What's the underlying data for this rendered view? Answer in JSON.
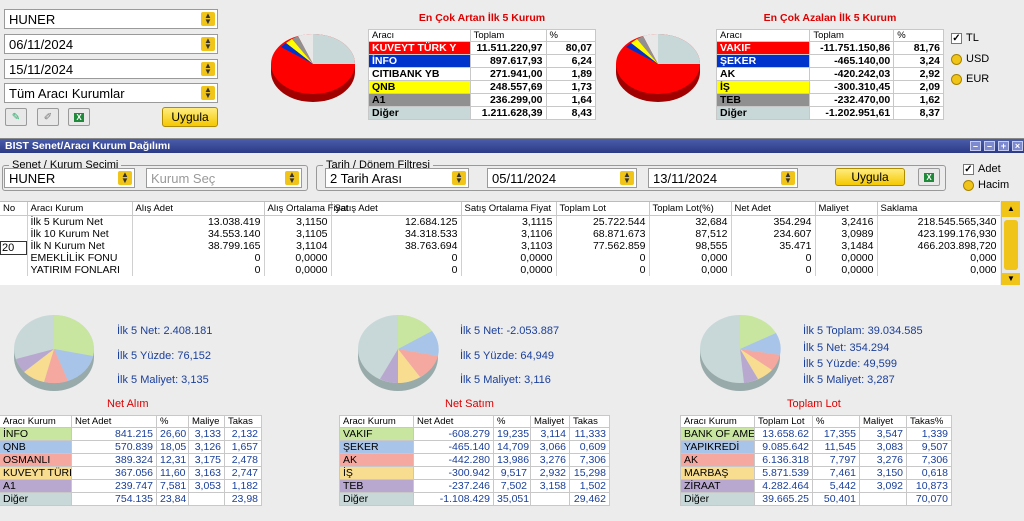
{
  "filters": {
    "kurum": "HUNER",
    "start_date": "06/11/2024",
    "end_date": "15/11/2024",
    "araci": "Tüm Aracı Kurumlar",
    "apply": "Uygula"
  },
  "top_artan": {
    "title": "En Çok Artan İlk 5 Kurum",
    "headers": [
      "Aracı",
      "Toplam",
      "%"
    ],
    "rows": [
      {
        "name": "KUVEYT TÜRK Y",
        "total": "11.511.220,97",
        "pct": "80,07",
        "bg": "#ff0000",
        "fg": "#ffffff"
      },
      {
        "name": "İNFO",
        "total": "897.617,93",
        "pct": "6,24",
        "bg": "#0033cc",
        "fg": "#ffffff"
      },
      {
        "name": "CITIBANK YB",
        "total": "271.941,00",
        "pct": "1,89",
        "bg": "#ffffff",
        "fg": "#000000"
      },
      {
        "name": "QNB",
        "total": "248.557,69",
        "pct": "1,73",
        "bg": "#ffff00",
        "fg": "#000000"
      },
      {
        "name": "A1",
        "total": "236.299,00",
        "pct": "1,64",
        "bg": "#909090",
        "fg": "#000000"
      },
      {
        "name": "Diğer",
        "total": "1.211.628,39",
        "pct": "8,43",
        "bg": "#c8d8d8",
        "fg": "#000000"
      }
    ]
  },
  "top_azalan": {
    "title": "En Çok Azalan İlk 5 Kurum",
    "headers": [
      "Aracı",
      "Toplam",
      "%"
    ],
    "rows": [
      {
        "name": "VAKIF",
        "total": "-11.751.150,86",
        "pct": "81,76",
        "bg": "#ff0000",
        "fg": "#ffffff"
      },
      {
        "name": "ŞEKER",
        "total": "-465.140,00",
        "pct": "3,24",
        "bg": "#0033cc",
        "fg": "#ffffff"
      },
      {
        "name": "AK",
        "total": "-420.242,03",
        "pct": "2,92",
        "bg": "#ffffff",
        "fg": "#000000"
      },
      {
        "name": "İŞ",
        "total": "-300.310,45",
        "pct": "2,09",
        "bg": "#ffff00",
        "fg": "#000000"
      },
      {
        "name": "TEB",
        "total": "-232.470,00",
        "pct": "1,62",
        "bg": "#909090",
        "fg": "#000000"
      },
      {
        "name": "Diğer",
        "total": "-1.202.951,61",
        "pct": "8,37",
        "bg": "#c8d8d8",
        "fg": "#000000"
      }
    ]
  },
  "currency": {
    "tl": "TL",
    "usd": "USD",
    "eur": "EUR"
  },
  "window": {
    "title": "BIST Senet/Aracı Kurum Dağılımı",
    "legend1": "Senet / Kurum Seçimi",
    "senet": "HUNER",
    "kurum_placeholder": "Kurum Seç",
    "legend2": "Tarih / Dönem Filtresi",
    "period": "2 Tarih Arası",
    "date1": "05/11/2024",
    "date2": "13/11/2024",
    "apply": "Uygula",
    "adet": "Adet",
    "hacim": "Hacim"
  },
  "main_table": {
    "headers": [
      "No",
      "Aracı Kurum",
      "Alış Adet",
      "Alış Ortalama Fiyat",
      "Satış Adet",
      "Satış Ortalama Fiyat",
      "Toplam Lot",
      "Toplam Lot(%)",
      "Net Adet",
      "Maliyet",
      "Saklama"
    ],
    "no_value": "20",
    "rows": [
      [
        "",
        "İlk 5 Kurum Net",
        "13.038.419",
        "3,1150",
        "12.684.125",
        "3,1115",
        "25.722.544",
        "32,684",
        "354.294",
        "3,2416",
        "218.545.565,340"
      ],
      [
        "",
        "İlk 10 Kurum Net",
        "34.553.140",
        "3,1105",
        "34.318.533",
        "3,1106",
        "68.871.673",
        "87,512",
        "234.607",
        "3,0989",
        "423.199.176,930"
      ],
      [
        "",
        "İlk N Kurum Net",
        "38.799.165",
        "3,1104",
        "38.763.694",
        "3,1103",
        "77.562.859",
        "98,555",
        "35.471",
        "3,1484",
        "466.203.898,720"
      ],
      [
        "",
        "EMEKLİLİK FONU",
        "0",
        "0,0000",
        "0",
        "0,0000",
        "0",
        "0,000",
        "0",
        "0,0000",
        "0,000"
      ],
      [
        "",
        "YATIRIM FONLARI",
        "0",
        "0,0000",
        "0",
        "0,0000",
        "0",
        "0,000",
        "0",
        "0,0000",
        "0,000"
      ]
    ]
  },
  "net_alim": {
    "title": "Net Alım",
    "summary": [
      "İlk 5 Net: 2.408.181",
      "İlk 5 Yüzde: 76,152",
      "İlk 5 Maliyet: 3,135"
    ],
    "headers": [
      "Aracı Kurum",
      "Net Adet",
      "%",
      "Maliye",
      "Takas"
    ],
    "rows": [
      {
        "c": [
          "İNFO",
          "841.215",
          "26,60",
          "3,133",
          "2,132"
        ],
        "bg": "#c8e6a0"
      },
      {
        "c": [
          "QNB",
          "570.839",
          "18,05",
          "3,126",
          "1,657"
        ],
        "bg": "#a8c4e8"
      },
      {
        "c": [
          "OSMANLI",
          "389.324",
          "12,31",
          "3,175",
          "2,478"
        ],
        "bg": "#f4a8a0"
      },
      {
        "c": [
          "KUVEYT TÜRK",
          "367.056",
          "11,60",
          "3,163",
          "2,747"
        ],
        "bg": "#f8dc90"
      },
      {
        "c": [
          "A1",
          "239.747",
          "7,581",
          "3,053",
          "1,182"
        ],
        "bg": "#b8a8d0"
      },
      {
        "c": [
          "Diğer",
          "754.135",
          "23,84",
          "",
          "23,98"
        ],
        "bg": "#c8d8d8"
      }
    ]
  },
  "net_satim": {
    "title": "Net Satım",
    "summary": [
      "İlk 5 Net: -2.053.887",
      "İlk 5 Yüzde: 64,949",
      "İlk 5 Maliyet: 3,116"
    ],
    "headers": [
      "Aracı Kurum",
      "Net Adet",
      "%",
      "Maliyet",
      "Takas"
    ],
    "rows": [
      {
        "c": [
          "VAKIF",
          "-608.279",
          "19,235",
          "3,114",
          "11,333"
        ],
        "bg": "#c8e6a0"
      },
      {
        "c": [
          "ŞEKER",
          "-465.140",
          "14,709",
          "3,066",
          "0,609"
        ],
        "bg": "#a8c4e8"
      },
      {
        "c": [
          "AK",
          "-442.280",
          "13,986",
          "3,276",
          "7,306"
        ],
        "bg": "#f4a8a0"
      },
      {
        "c": [
          "İŞ",
          "-300.942",
          "9,517",
          "2,932",
          "15,298"
        ],
        "bg": "#f8dc90"
      },
      {
        "c": [
          "TEB",
          "-237.246",
          "7,502",
          "3,158",
          "1,502"
        ],
        "bg": "#b8a8d0"
      },
      {
        "c": [
          "Diğer",
          "-1.108.429",
          "35,051",
          "",
          "29,462"
        ],
        "bg": "#c8d8d8"
      }
    ]
  },
  "toplam_lot": {
    "title": "Toplam Lot",
    "summary": [
      "İlk 5 Toplam: 39.034.585",
      "İlk 5 Net: 354.294",
      "İlk 5 Yüzde: 49,599",
      "İlk 5 Maliyet: 3,287"
    ],
    "headers": [
      "Aracı Kurum",
      "Toplam Lot",
      "%",
      "Maliyet",
      "Takas%"
    ],
    "rows": [
      {
        "c": [
          "BANK OF AME",
          "13.658.62",
          "17,355",
          "3,547",
          "1,339"
        ],
        "bg": "#c8e6a0"
      },
      {
        "c": [
          "YAPIKREDİ",
          "9.085.642",
          "11,545",
          "3,083",
          "9,507"
        ],
        "bg": "#a8c4e8"
      },
      {
        "c": [
          "AK",
          "6.136.318",
          "7,797",
          "3,276",
          "7,306"
        ],
        "bg": "#f4a8a0"
      },
      {
        "c": [
          "MARBAŞ",
          "5.871.539",
          "7,461",
          "3,150",
          "0,618"
        ],
        "bg": "#f8dc90"
      },
      {
        "c": [
          "ZİRAAT",
          "4.282.464",
          "5,442",
          "3,092",
          "10,873"
        ],
        "bg": "#b8a8d0"
      },
      {
        "c": [
          "Diğer",
          "39.665.25",
          "50,401",
          "",
          "70,070"
        ],
        "bg": "#c8d8d8"
      }
    ]
  }
}
